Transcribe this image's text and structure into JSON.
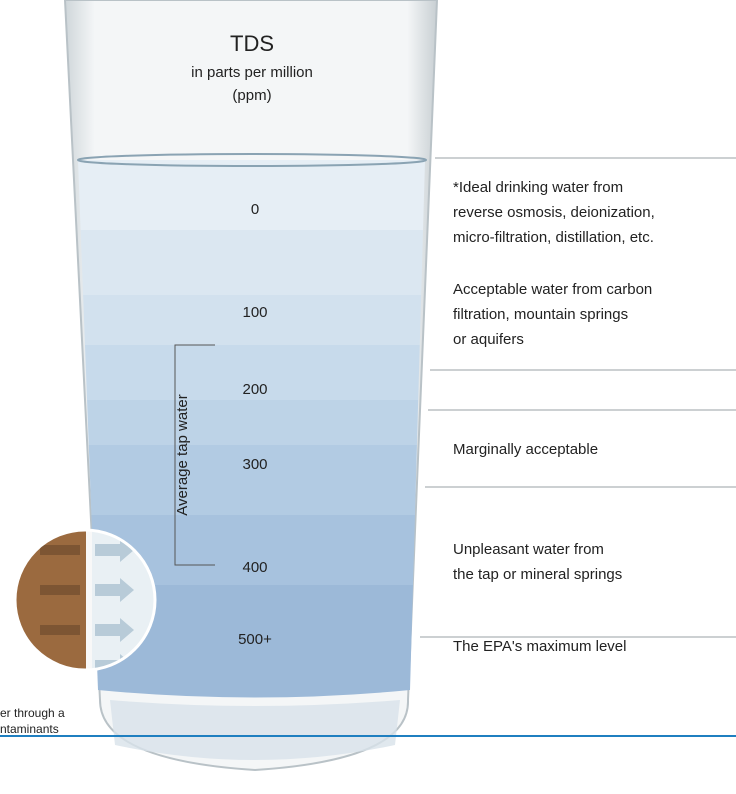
{
  "header": {
    "title": "TDS",
    "subtitle": [
      "in parts per million",
      "(ppm)"
    ]
  },
  "levels": [
    "0",
    "100",
    "200",
    "300",
    "400",
    "500+"
  ],
  "side_label": "Average tap water",
  "descriptions": [
    [
      "*Ideal drinking water from",
      "reverse osmosis, deionization,",
      " micro-filtration, distillation, etc."
    ],
    [
      "Acceptable water from carbon",
      "filtration, mountain springs",
      "or aquifers"
    ],
    [
      "Marginally acceptable"
    ],
    [
      "Unpleasant water from",
      "the tap or mineral springs"
    ],
    [
      "The EPA's maximum level"
    ]
  ],
  "inset_caption": [
    "er through a",
    "ntaminants"
  ]
}
